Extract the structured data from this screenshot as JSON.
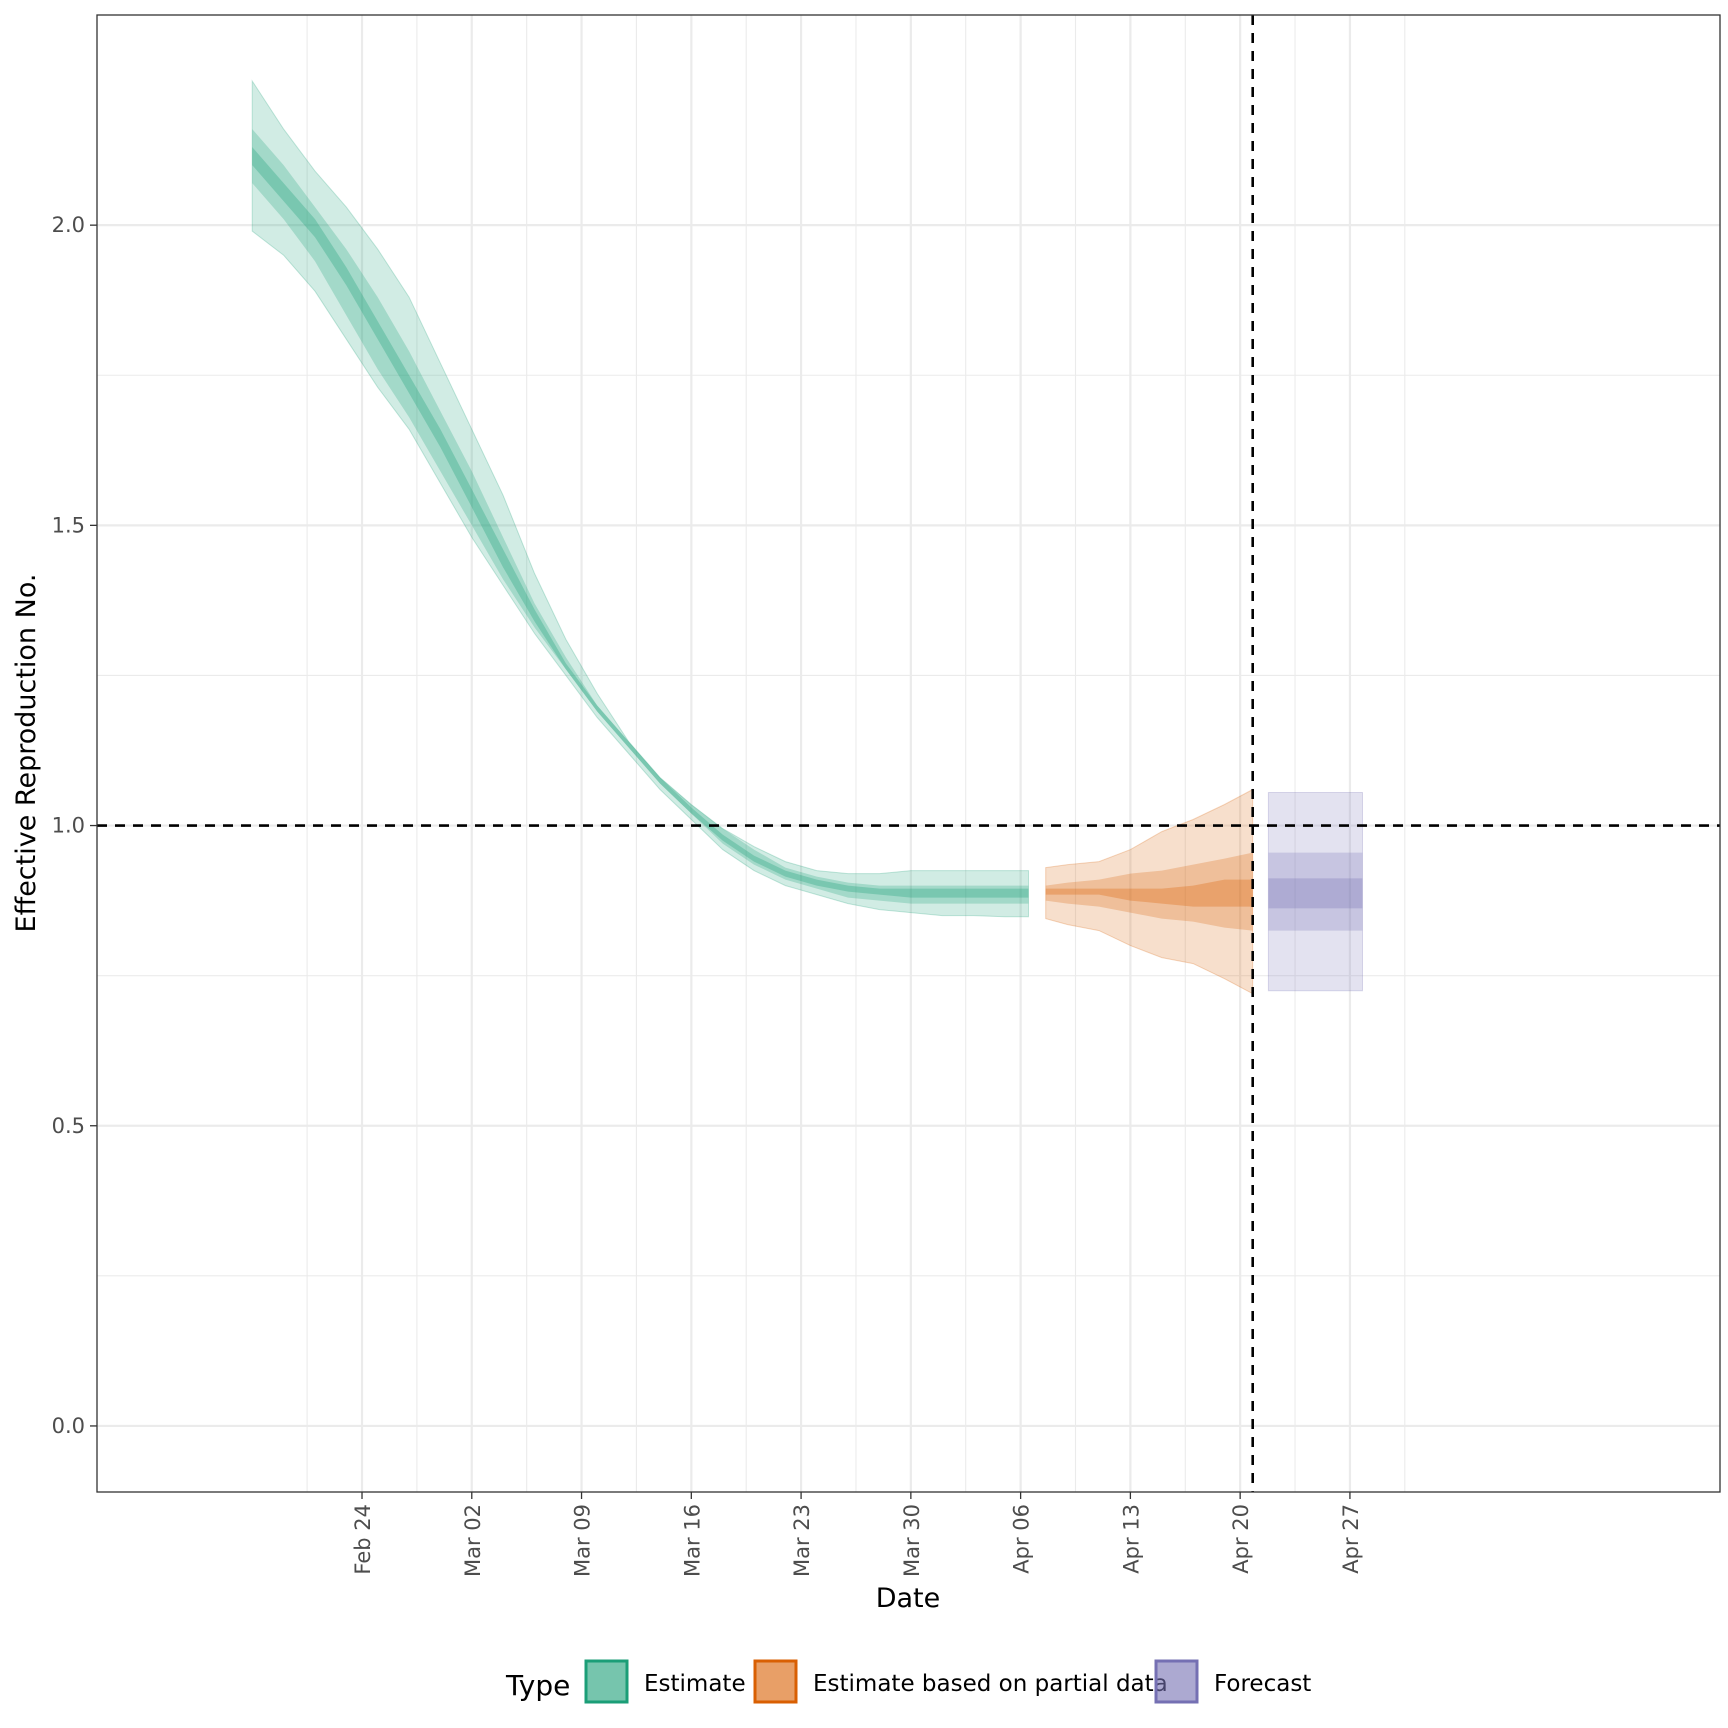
{
  "chart_data": {
    "type": "area",
    "xlabel": "Date",
    "ylabel": "Effective Reproduction No.",
    "ylim": [
      -0.11,
      2.35
    ],
    "yticks": [
      0.0,
      0.5,
      1.0,
      1.5,
      2.0
    ],
    "ytick_labels": [
      "0.0",
      "0.5",
      "1.0",
      "1.5",
      "2.0"
    ],
    "x_range_days": [
      -9.9,
      93.6
    ],
    "x_origin_date": "Feb 17",
    "xticks_days": [
      7,
      14,
      21,
      28,
      35,
      42,
      49,
      56,
      63,
      70
    ],
    "xtick_labels": [
      "Feb 24",
      "Mar 02",
      "Mar 09",
      "Mar 16",
      "Mar 23",
      "Mar 30",
      "Apr 06",
      "Apr 13",
      "Apr 20",
      "Apr 27"
    ],
    "hline": 1.0,
    "vline_day": 63.8,
    "legend": {
      "title": "Type",
      "position": "bottom",
      "entries": [
        "Estimate",
        "Estimate based on partial data",
        "Forecast"
      ]
    },
    "colors": {
      "Estimate": "#1b9e77",
      "Estimate based on partial data": "#d95f02",
      "Forecast": "#7570b3"
    },
    "series": [
      {
        "name": "Estimate",
        "bands": [
          {
            "level": "90%",
            "x": [
              0,
              2,
              4,
              6,
              8,
              10,
              12,
              14,
              16,
              18,
              20,
              22,
              24,
              26,
              28,
              30,
              32,
              34,
              36,
              38,
              40,
              42,
              44,
              46,
              48,
              49.5
            ],
            "lower": [
              1.99,
              1.95,
              1.89,
              1.81,
              1.73,
              1.66,
              1.57,
              1.48,
              1.4,
              1.32,
              1.25,
              1.18,
              1.12,
              1.06,
              1.01,
              0.96,
              0.925,
              0.9,
              0.885,
              0.87,
              0.86,
              0.855,
              0.85,
              0.85,
              0.848,
              0.848
            ],
            "upper": [
              2.24,
              2.16,
              2.09,
              2.03,
              1.96,
              1.88,
              1.77,
              1.66,
              1.55,
              1.42,
              1.31,
              1.22,
              1.14,
              1.08,
              1.035,
              0.995,
              0.965,
              0.94,
              0.925,
              0.92,
              0.92,
              0.925,
              0.925,
              0.925,
              0.925,
              0.925
            ]
          },
          {
            "level": "50%",
            "x": [
              0,
              2,
              4,
              6,
              8,
              10,
              12,
              14,
              16,
              18,
              20,
              22,
              24,
              26,
              28,
              30,
              32,
              34,
              36,
              38,
              40,
              42,
              44,
              46,
              48,
              49.5
            ],
            "lower": [
              2.07,
              2.01,
              1.94,
              1.85,
              1.76,
              1.68,
              1.59,
              1.5,
              1.41,
              1.33,
              1.26,
              1.19,
              1.13,
              1.07,
              1.02,
              0.97,
              0.935,
              0.91,
              0.895,
              0.88,
              0.875,
              0.87,
              0.87,
              0.87,
              0.87,
              0.87
            ],
            "upper": [
              2.16,
              2.1,
              2.03,
              1.96,
              1.88,
              1.79,
              1.69,
              1.59,
              1.48,
              1.37,
              1.28,
              1.2,
              1.14,
              1.08,
              1.035,
              0.995,
              0.96,
              0.93,
              0.915,
              0.905,
              0.9,
              0.9,
              0.9,
              0.9,
              0.9,
              0.9
            ]
          },
          {
            "level": "20%",
            "x": [
              0,
              2,
              4,
              6,
              8,
              10,
              12,
              14,
              16,
              18,
              20,
              22,
              24,
              26,
              28,
              30,
              32,
              34,
              36,
              38,
              40,
              42,
              44,
              46,
              48,
              49.5
            ],
            "lower": [
              2.1,
              2.04,
              1.98,
              1.9,
              1.81,
              1.72,
              1.63,
              1.53,
              1.43,
              1.34,
              1.26,
              1.19,
              1.13,
              1.07,
              1.02,
              0.975,
              0.94,
              0.915,
              0.9,
              0.89,
              0.885,
              0.88,
              0.88,
              0.88,
              0.88,
              0.88
            ],
            "upper": [
              2.13,
              2.07,
              2.01,
              1.93,
              1.84,
              1.75,
              1.66,
              1.56,
              1.46,
              1.36,
              1.27,
              1.2,
              1.14,
              1.08,
              1.03,
              0.985,
              0.95,
              0.925,
              0.91,
              0.9,
              0.895,
              0.895,
              0.895,
              0.895,
              0.895,
              0.895
            ]
          }
        ]
      },
      {
        "name": "Estimate based on partial data",
        "bands": [
          {
            "level": "90%",
            "x": [
              50.6,
              52,
              54,
              56,
              58,
              60,
              62,
              63.8
            ],
            "lower": [
              0.845,
              0.835,
              0.825,
              0.8,
              0.78,
              0.77,
              0.745,
              0.72
            ],
            "upper": [
              0.93,
              0.935,
              0.94,
              0.96,
              0.99,
              1.01,
              1.035,
              1.06
            ]
          },
          {
            "level": "50%",
            "x": [
              50.6,
              52,
              54,
              56,
              58,
              60,
              62,
              63.8
            ],
            "lower": [
              0.875,
              0.87,
              0.865,
              0.855,
              0.845,
              0.84,
              0.83,
              0.825
            ],
            "upper": [
              0.9,
              0.905,
              0.91,
              0.92,
              0.925,
              0.935,
              0.945,
              0.955
            ]
          },
          {
            "level": "20%",
            "x": [
              50.6,
              52,
              54,
              56,
              58,
              60,
              62,
              63.8
            ],
            "lower": [
              0.885,
              0.885,
              0.885,
              0.875,
              0.87,
              0.865,
              0.865,
              0.865
            ],
            "upper": [
              0.895,
              0.895,
              0.895,
              0.895,
              0.895,
              0.9,
              0.91,
              0.91
            ]
          }
        ]
      },
      {
        "name": "Forecast",
        "bands": [
          {
            "level": "90%",
            "x": [
              64.8,
              70.8
            ],
            "lower": [
              0.725,
              0.725
            ],
            "upper": [
              1.055,
              1.055
            ]
          },
          {
            "level": "50%",
            "x": [
              64.8,
              70.8
            ],
            "lower": [
              0.825,
              0.825
            ],
            "upper": [
              0.955,
              0.955
            ]
          },
          {
            "level": "20%",
            "x": [
              64.8,
              70.8
            ],
            "lower": [
              0.862,
              0.862
            ],
            "upper": [
              0.912,
              0.912
            ]
          }
        ]
      }
    ]
  }
}
